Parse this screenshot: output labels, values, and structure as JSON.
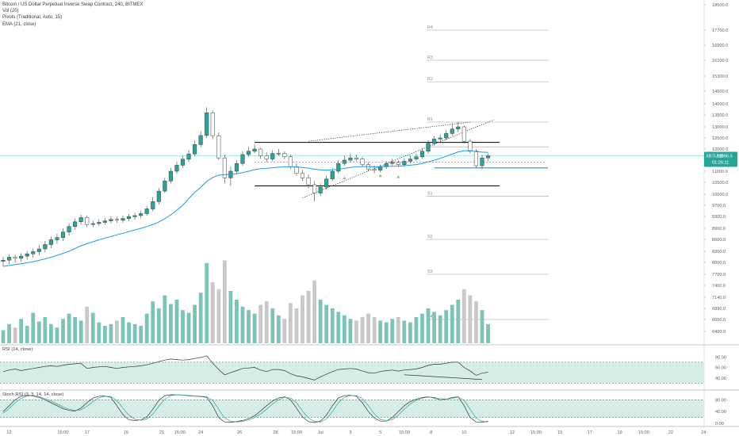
{
  "legend": {
    "title": "Bitcoin / US Dollar Perpetual Inverse Swap Contract, 240, BITMEX",
    "vol": "Vol (20)",
    "pivots": "Pivots (Traditional, Auto, 15)",
    "ema": "EMA (21, close)"
  },
  "rsi_panel": {
    "title": "RSI (14, close)"
  },
  "stoch_panel": {
    "title": "Stoch RSI (3, 3, 14, 14, close)"
  },
  "price_badge": {
    "symbol": "XBTUSD",
    "price": "11696.5",
    "countdown": "01:26:11"
  },
  "colors": {
    "up": "#26a69a",
    "down": "#3d3d3d",
    "ema": "#2196f3",
    "vol_up": "#7cc4b8",
    "vol_down": "#c8c8c8",
    "band": "#d6ece6",
    "badge": "#26a69a"
  },
  "chart_data": [
    {
      "type": "candlestick",
      "title": "Bitcoin / US Dollar Perpetual Inverse Swap Contract, 240, BITMEX",
      "price_axis": {
        "ticks": [
          18500,
          17700,
          16900,
          16100,
          15300,
          14500,
          14000,
          13500,
          13000,
          12500,
          12000,
          11500,
          11000,
          10500,
          10000,
          9700,
          9300,
          8900,
          8600,
          8300,
          8000,
          7700,
          7400,
          7140,
          6890,
          6650,
          6400
        ],
        "tick_labels": [
          "18500.0",
          "17700.0",
          "16900.0",
          "16100.0",
          "15300.0",
          "14500.0",
          "14000.0",
          "13500.0",
          "13000.0",
          "12500.0",
          "12000.0",
          "11500.0",
          "11000.0",
          "10500.0",
          "10000.0",
          "9700.0",
          "9300.0",
          "8900.0",
          "8600.0",
          "8300.0",
          "8000.0",
          "7700.0",
          "7400.0",
          "7140.0",
          "6890.0",
          "6650.0",
          "6400.0"
        ],
        "scale": "log"
      },
      "time_axis": {
        "labels": [
          "12",
          "15:00",
          "17",
          "19",
          "21",
          "15:00",
          "24",
          "26",
          "28",
          "15:00",
          "Jul",
          "3",
          "5",
          "15:00",
          "8",
          "10",
          "12",
          "15:00",
          "15",
          "17",
          "19",
          "15:00",
          "22",
          "24"
        ],
        "label_index": [
          1,
          10,
          14,
          20.5,
          26.5,
          29.5,
          33,
          39.5,
          45.5,
          49,
          53,
          58,
          63,
          67,
          71.5,
          77,
          85,
          89,
          93,
          98,
          103,
          107,
          111.5,
          117
        ]
      },
      "candles": {
        "open": [
          8030,
          8060,
          8140,
          8110,
          8170,
          8230,
          8290,
          8360,
          8470,
          8590,
          8650,
          8800,
          8960,
          9120,
          9260,
          9030,
          9060,
          9100,
          9150,
          9200,
          9170,
          9230,
          9290,
          9330,
          9400,
          9570,
          9800,
          10130,
          10560,
          11000,
          11270,
          11540,
          11780,
          12200,
          12610,
          13600,
          12600,
          11600,
          10700,
          11000,
          11350,
          11750,
          11900,
          12000,
          11700,
          11550,
          11800,
          11800,
          11650,
          11200,
          10900,
          10700,
          10400,
          10050,
          10300,
          10650,
          11000,
          11350,
          11500,
          11600,
          11550,
          11300,
          11100,
          11050,
          11200,
          11350,
          11400,
          11300,
          11450,
          11550,
          11650,
          11900,
          12250,
          12450,
          12500,
          12700,
          12900,
          13000,
          12350,
          11900,
          11250,
          11600
        ],
        "close": [
          8060,
          8140,
          8110,
          8170,
          8230,
          8290,
          8360,
          8470,
          8590,
          8650,
          8800,
          8960,
          9120,
          9260,
          9030,
          9060,
          9100,
          9150,
          9200,
          9170,
          9230,
          9290,
          9330,
          9400,
          9570,
          9800,
          10130,
          10560,
          11000,
          11270,
          11540,
          11780,
          12200,
          12610,
          13600,
          12600,
          11600,
          10700,
          11000,
          11350,
          11750,
          11900,
          12000,
          11700,
          11550,
          11800,
          11800,
          11650,
          11200,
          10900,
          10700,
          10400,
          10050,
          10300,
          10650,
          11000,
          11350,
          11500,
          11600,
          11550,
          11300,
          11100,
          11050,
          11200,
          11350,
          11400,
          11300,
          11450,
          11550,
          11650,
          11900,
          12250,
          12450,
          12500,
          12700,
          12900,
          13000,
          12350,
          11900,
          11250,
          11600,
          11696.5
        ],
        "high": [
          8150,
          8220,
          8200,
          8250,
          8310,
          8370,
          8450,
          8560,
          8680,
          8750,
          8900,
          9060,
          9230,
          9360,
          9330,
          9160,
          9200,
          9250,
          9300,
          9290,
          9330,
          9390,
          9430,
          9500,
          9680,
          9920,
          10260,
          10700,
          11150,
          11420,
          11700,
          11950,
          12380,
          12800,
          13850,
          13700,
          12750,
          11750,
          11200,
          11500,
          11900,
          12100,
          12200,
          12050,
          11850,
          11950,
          12000,
          11900,
          11750,
          11350,
          11050,
          10850,
          10550,
          10450,
          10800,
          11150,
          11500,
          11700,
          11800,
          11750,
          11650,
          11400,
          11250,
          11300,
          11450,
          11550,
          11500,
          11600,
          11700,
          11800,
          12050,
          12400,
          12600,
          12650,
          12850,
          13150,
          13200,
          13050,
          12450,
          12000,
          11750,
          11800
        ],
        "low": [
          7900,
          7960,
          8000,
          8020,
          8080,
          8130,
          8190,
          8270,
          8380,
          8490,
          8560,
          8700,
          8860,
          9020,
          8950,
          8940,
          8980,
          9020,
          9060,
          9080,
          9090,
          9140,
          9190,
          9240,
          9320,
          9480,
          9720,
          10050,
          10460,
          10880,
          11150,
          11420,
          11680,
          12080,
          12500,
          12450,
          11500,
          10450,
          10350,
          10900,
          11250,
          11650,
          11800,
          11550,
          11400,
          11450,
          11700,
          11550,
          11100,
          10800,
          10550,
          10250,
          9800,
          9950,
          10200,
          10550,
          10900,
          11250,
          11400,
          11450,
          11200,
          11000,
          10900,
          10950,
          11100,
          11250,
          11200,
          11200,
          11350,
          11450,
          11550,
          11800,
          12150,
          12350,
          12400,
          12600,
          12750,
          12250,
          11800,
          11150,
          11100,
          11450
        ]
      },
      "ema_21": [
        7900,
        7920,
        7945,
        7965,
        7990,
        8020,
        8055,
        8095,
        8140,
        8190,
        8245,
        8305,
        8370,
        8440,
        8490,
        8540,
        8590,
        8635,
        8680,
        8725,
        8765,
        8810,
        8855,
        8900,
        8960,
        9030,
        9110,
        9220,
        9360,
        9520,
        9700,
        9880,
        10080,
        10290,
        10540,
        10720,
        10820,
        10850,
        10860,
        10890,
        10940,
        11000,
        11070,
        11110,
        11130,
        11160,
        11180,
        11200,
        11200,
        11190,
        11170,
        11140,
        11090,
        11060,
        11050,
        11060,
        11090,
        11130,
        11170,
        11200,
        11210,
        11210,
        11200,
        11200,
        11210,
        11220,
        11230,
        11250,
        11270,
        11300,
        11350,
        11420,
        11500,
        11580,
        11670,
        11770,
        11870,
        11920,
        11930,
        11880,
        11860,
        11850
      ],
      "volume_relative": [
        0.15,
        0.22,
        0.18,
        0.28,
        0.2,
        0.35,
        0.25,
        0.3,
        0.22,
        0.18,
        0.28,
        0.34,
        0.3,
        0.26,
        0.42,
        0.35,
        0.24,
        0.2,
        0.22,
        0.26,
        0.3,
        0.24,
        0.22,
        0.2,
        0.34,
        0.48,
        0.4,
        0.55,
        0.45,
        0.5,
        0.38,
        0.35,
        0.44,
        0.58,
        0.92,
        0.7,
        0.62,
        0.95,
        0.6,
        0.5,
        0.42,
        0.38,
        0.34,
        0.44,
        0.48,
        0.4,
        0.32,
        0.28,
        0.46,
        0.4,
        0.55,
        0.6,
        0.72,
        0.5,
        0.44,
        0.4,
        0.36,
        0.32,
        0.28,
        0.26,
        0.3,
        0.34,
        0.3,
        0.26,
        0.24,
        0.28,
        0.3,
        0.26,
        0.24,
        0.3,
        0.34,
        0.4,
        0.36,
        0.32,
        0.38,
        0.44,
        0.5,
        0.62,
        0.55,
        0.48,
        0.38,
        0.22
      ],
      "pivots": {
        "R4": 17700,
        "R3": 16100,
        "R2": 15000,
        "R1": 13200,
        "P": 12100,
        "S1": 9950,
        "S2": 8600,
        "S3": 7700,
        "S4": 6650
      },
      "horizontal_levels": {
        "range_top": 12300,
        "range_bottom": 10350,
        "support": 11150,
        "current": 11696.5
      },
      "trendlines": [
        {
          "style": "dotted",
          "from": [
            51,
            12350
          ],
          "to": [
            78,
            13200
          ]
        },
        {
          "style": "dotted",
          "from": [
            50,
            9900
          ],
          "to": [
            82,
            13300
          ]
        }
      ]
    },
    {
      "type": "line",
      "title": "RSI (14, close)",
      "ylim": [
        20,
        100
      ],
      "tick_labels": [
        "80.00",
        "60.00",
        "40.00"
      ],
      "band": [
        30,
        70
      ],
      "values": [
        52,
        55,
        57,
        54,
        56,
        58,
        60,
        62,
        63,
        62,
        64,
        66,
        67,
        68,
        58,
        60,
        61,
        62,
        60,
        58,
        60,
        61,
        62,
        63,
        65,
        68,
        71,
        74,
        76,
        75,
        74,
        75,
        77,
        79,
        82,
        68,
        56,
        46,
        50,
        54,
        58,
        59,
        60,
        55,
        52,
        56,
        56,
        54,
        48,
        44,
        42,
        39,
        36,
        42,
        47,
        52,
        56,
        57,
        58,
        57,
        53,
        50,
        49,
        52,
        54,
        55,
        53,
        55,
        56,
        57,
        60,
        64,
        66,
        66,
        68,
        70,
        70,
        60,
        53,
        45,
        49,
        51
      ],
      "divergence_line": {
        "from": [
          67,
          46
        ],
        "to": [
          80,
          37
        ]
      }
    },
    {
      "type": "line",
      "title": "Stoch RSI (3, 3, 14, 14, close)",
      "ylim": [
        -5,
        105
      ],
      "tick_labels": [
        "80.00",
        "40.00",
        "0.00"
      ],
      "band": [
        20,
        80
      ],
      "series": [
        {
          "values": [
            40,
            60,
            80,
            92,
            95,
            93,
            88,
            80,
            70,
            60,
            50,
            44,
            42,
            52,
            70,
            86,
            92,
            93,
            88,
            60,
            30,
            12,
            10,
            12,
            22,
            48,
            78,
            94,
            97,
            97,
            96,
            94,
            92,
            91,
            88,
            60,
            20,
            5,
            4,
            6,
            10,
            16,
            26,
            42,
            60,
            76,
            86,
            90,
            80,
            52,
            22,
            6,
            3,
            8,
            28,
            60,
            86,
            94,
            95,
            92,
            70,
            40,
            18,
            8,
            8,
            20,
            40,
            60,
            74,
            82,
            88,
            90,
            86,
            80,
            82,
            88,
            90,
            60,
            20,
            5,
            4,
            8
          ]
        },
        {
          "values": [
            35,
            50,
            70,
            85,
            93,
            94,
            90,
            84,
            76,
            66,
            56,
            48,
            44,
            46,
            58,
            74,
            87,
            92,
            91,
            78,
            52,
            28,
            14,
            11,
            15,
            32,
            58,
            82,
            94,
            97,
            96,
            95,
            93,
            92,
            90,
            78,
            48,
            18,
            8,
            5,
            7,
            12,
            20,
            32,
            48,
            66,
            80,
            88,
            86,
            70,
            42,
            18,
            7,
            5,
            15,
            40,
            70,
            88,
            94,
            94,
            84,
            60,
            32,
            14,
            9,
            13,
            28,
            48,
            66,
            78,
            86,
            89,
            88,
            84,
            82,
            85,
            89,
            78,
            48,
            18,
            7,
            5
          ]
        }
      ]
    }
  ]
}
